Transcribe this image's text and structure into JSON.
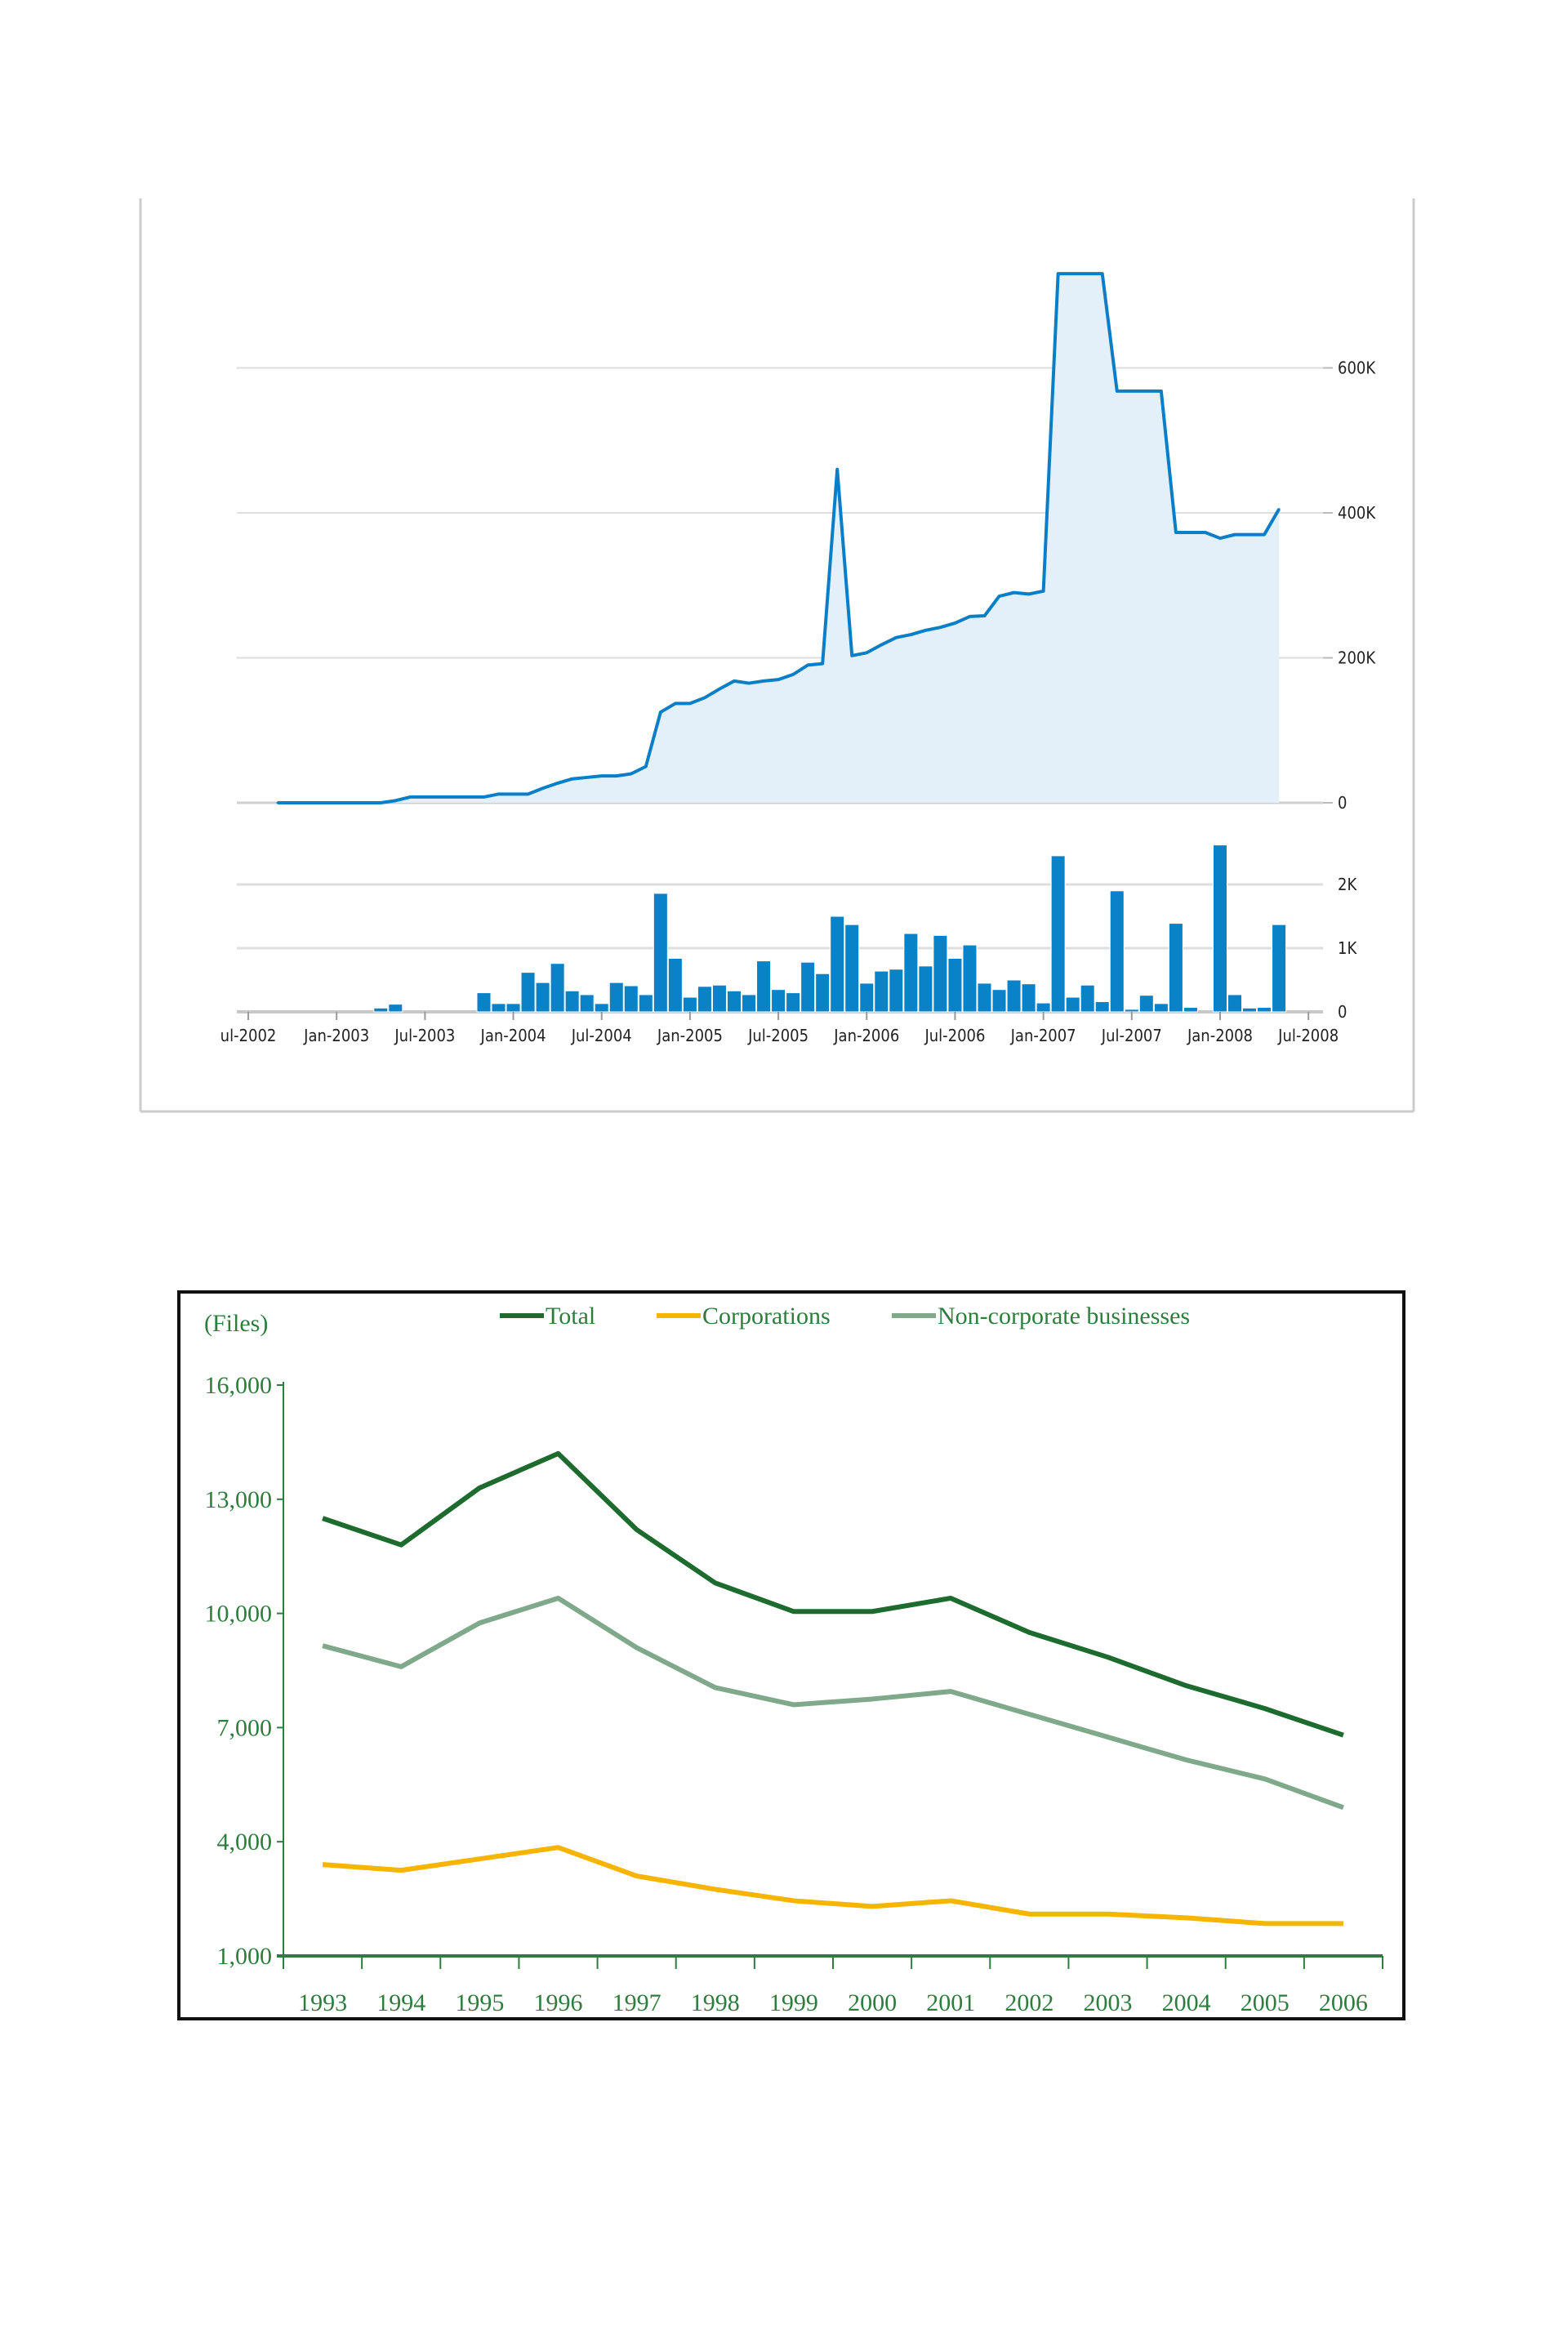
{
  "chart_data": [
    {
      "type": "area",
      "title": "",
      "xlabel": "",
      "ylabel": "",
      "x_tick_labels": [
        "ul-2002",
        "Jan-2003",
        "Jul-2003",
        "Jan-2004",
        "Jul-2004",
        "Jan-2005",
        "Jul-2005",
        "Jan-2006",
        "Jul-2006",
        "Jan-2007",
        "Jul-2007",
        "Jan-2008",
        "Jul-2008"
      ],
      "y_tick_labels": [
        "0",
        "200K",
        "400K",
        "600K"
      ],
      "y_ticks": [
        0,
        200000,
        400000,
        600000
      ],
      "ylim": [
        0,
        800000
      ],
      "x_range_months": [
        "2002-07",
        "2008-07"
      ],
      "grid": true,
      "colors": {
        "line": "#0a7fc7",
        "fill": "#e4f0f9",
        "grid": "#d9d9d9",
        "frame": "#cccccc"
      },
      "points": [
        [
          "2002-09",
          0
        ],
        [
          "2002-10",
          0
        ],
        [
          "2002-11",
          0
        ],
        [
          "2002-12",
          0
        ],
        [
          "2003-01",
          0
        ],
        [
          "2003-02",
          0
        ],
        [
          "2003-03",
          0
        ],
        [
          "2003-04",
          0
        ],
        [
          "2003-05",
          3000
        ],
        [
          "2003-06",
          8000
        ],
        [
          "2003-07",
          8000
        ],
        [
          "2003-08",
          8000
        ],
        [
          "2003-09",
          8000
        ],
        [
          "2003-10",
          8000
        ],
        [
          "2003-11",
          8000
        ],
        [
          "2003-12",
          12000
        ],
        [
          "2004-01",
          12000
        ],
        [
          "2004-02",
          12000
        ],
        [
          "2004-03",
          20000
        ],
        [
          "2004-04",
          27000
        ],
        [
          "2004-05",
          33000
        ],
        [
          "2004-06",
          35000
        ],
        [
          "2004-07",
          37000
        ],
        [
          "2004-08",
          37000
        ],
        [
          "2004-09",
          40000
        ],
        [
          "2004-10",
          50000
        ],
        [
          "2004-11",
          125000
        ],
        [
          "2004-12",
          137000
        ],
        [
          "2005-01",
          137000
        ],
        [
          "2005-02",
          145000
        ],
        [
          "2005-03",
          157000
        ],
        [
          "2005-04",
          168000
        ],
        [
          "2005-05",
          165000
        ],
        [
          "2005-06",
          168000
        ],
        [
          "2005-07",
          170000
        ],
        [
          "2005-08",
          177000
        ],
        [
          "2005-09",
          190000
        ],
        [
          "2005-10",
          192000
        ],
        [
          "2005-11",
          460000
        ],
        [
          "2005-12",
          203000
        ],
        [
          "2006-01",
          207000
        ],
        [
          "2006-02",
          218000
        ],
        [
          "2006-03",
          228000
        ],
        [
          "2006-04",
          232000
        ],
        [
          "2006-05",
          238000
        ],
        [
          "2006-06",
          242000
        ],
        [
          "2006-07",
          248000
        ],
        [
          "2006-08",
          257000
        ],
        [
          "2006-09",
          258000
        ],
        [
          "2006-10",
          285000
        ],
        [
          "2006-11",
          290000
        ],
        [
          "2006-12",
          288000
        ],
        [
          "2007-01",
          292000
        ],
        [
          "2007-02",
          730000
        ],
        [
          "2007-03",
          730000
        ],
        [
          "2007-04",
          730000
        ],
        [
          "2007-05",
          730000
        ],
        [
          "2007-06",
          568000
        ],
        [
          "2007-07",
          568000
        ],
        [
          "2007-08",
          568000
        ],
        [
          "2007-09",
          568000
        ],
        [
          "2007-10",
          373000
        ],
        [
          "2007-11",
          373000
        ],
        [
          "2007-12",
          373000
        ],
        [
          "2008-01",
          365000
        ],
        [
          "2008-02",
          370000
        ],
        [
          "2008-03",
          370000
        ],
        [
          "2008-04",
          370000
        ],
        [
          "2008-05",
          405000
        ]
      ]
    },
    {
      "type": "bar",
      "title": "",
      "xlabel": "",
      "ylabel": "",
      "y_tick_labels": [
        "0",
        "1K",
        "2K"
      ],
      "y_ticks": [
        0,
        1000,
        2000
      ],
      "ylim": [
        0,
        2600
      ],
      "grid": true,
      "colors": {
        "bar": "#0a82c8",
        "grid": "#d9d9d9"
      },
      "categories": [
        "2003-04",
        "2003-05",
        "2003-11",
        "2003-12",
        "2004-01",
        "2004-02",
        "2004-03",
        "2004-04",
        "2004-05",
        "2004-06",
        "2004-07",
        "2004-08",
        "2004-09",
        "2004-10",
        "2004-11",
        "2004-12",
        "2005-01",
        "2005-02",
        "2005-03",
        "2005-04",
        "2005-05",
        "2005-06",
        "2005-07",
        "2005-08",
        "2005-09",
        "2005-10",
        "2005-11",
        "2005-12",
        "2006-01",
        "2006-02",
        "2006-03",
        "2006-04",
        "2006-05",
        "2006-06",
        "2006-07",
        "2006-08",
        "2006-09",
        "2006-10",
        "2006-11",
        "2006-12",
        "2007-01",
        "2007-02",
        "2007-03",
        "2007-04",
        "2007-05",
        "2007-06",
        "2007-07",
        "2007-08",
        "2007-09",
        "2007-10",
        "2007-11",
        "2007-12",
        "2008-01",
        "2008-02",
        "2008-03",
        "2008-04",
        "2008-05"
      ],
      "values": [
        60,
        120,
        300,
        130,
        130,
        620,
        460,
        760,
        330,
        270,
        130,
        460,
        410,
        270,
        1860,
        840,
        230,
        400,
        420,
        330,
        270,
        800,
        350,
        300,
        780,
        600,
        1500,
        1370,
        450,
        640,
        670,
        1230,
        720,
        1200,
        840,
        1050,
        450,
        350,
        500,
        440,
        140,
        2450,
        230,
        420,
        160,
        1900,
        40,
        260,
        130,
        1390,
        70,
        0,
        2620,
        270,
        60,
        70,
        1370
      ]
    },
    {
      "type": "line",
      "title": "",
      "xlabel": "",
      "ylabel": "(Files)",
      "x": [
        "1993",
        "1994",
        "1995",
        "1996",
        "1997",
        "1998",
        "1999",
        "2000",
        "2001",
        "2002",
        "2003",
        "2004",
        "2005",
        "2006"
      ],
      "y_tick_labels": [
        "1,000",
        "4,000",
        "7,000",
        "10,000",
        "13,000",
        "16,000"
      ],
      "y_ticks": [
        1000,
        4000,
        7000,
        10000,
        13000,
        16000
      ],
      "ylim": [
        1000,
        16000
      ],
      "grid": false,
      "legend_position": "top",
      "axis_color": "#2e7d3e",
      "series": [
        {
          "name": "Total",
          "color": "#1d6b2e",
          "values": [
            12500,
            11800,
            13300,
            14200,
            12200,
            10800,
            10050,
            10050,
            10400,
            9500,
            8850,
            8100,
            7500,
            6800
          ]
        },
        {
          "name": "Corporations",
          "color": "#f7b500",
          "values": [
            3400,
            3250,
            3550,
            3850,
            3100,
            2750,
            2450,
            2300,
            2450,
            2100,
            2100,
            2000,
            1850,
            1850
          ]
        },
        {
          "name": "Non-corporate businesses",
          "color": "#7fa98a",
          "values": [
            9150,
            8600,
            9750,
            10400,
            9100,
            8050,
            7600,
            7750,
            7950,
            7350,
            6750,
            6150,
            5650,
            4900
          ]
        }
      ]
    }
  ]
}
